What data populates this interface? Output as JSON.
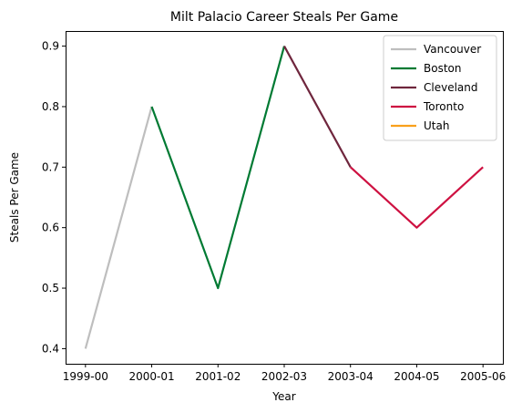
{
  "chart_data": {
    "type": "line",
    "title": "Milt Palacio Career Steals Per Game",
    "xlabel": "Year",
    "ylabel": "Steals Per Game",
    "categories": [
      "1999-00",
      "2000-01",
      "2001-02",
      "2002-03",
      "2003-04",
      "2004-05",
      "2005-06"
    ],
    "ylim": [
      0.375,
      0.925
    ],
    "yticks": [
      0.4,
      0.5,
      0.6,
      0.7,
      0.8,
      0.9
    ],
    "ytick_labels": [
      "0.4",
      "0.5",
      "0.6",
      "0.7",
      "0.8",
      "0.9"
    ],
    "grid": false,
    "legend_position": "top-right",
    "series": [
      {
        "name": "Vancouver",
        "color": "#BEBEBE",
        "points": [
          {
            "x": "1999-00",
            "y": 0.4
          },
          {
            "x": "2000-01",
            "y": 0.8
          }
        ]
      },
      {
        "name": "Boston",
        "color": "#007A33",
        "points": [
          {
            "x": "2000-01",
            "y": 0.8
          },
          {
            "x": "2001-02",
            "y": 0.5
          },
          {
            "x": "2002-03",
            "y": 0.9
          }
        ]
      },
      {
        "name": "Cleveland",
        "color": "#6F263D",
        "points": [
          {
            "x": "2002-03",
            "y": 0.9
          },
          {
            "x": "2003-04",
            "y": 0.7
          }
        ]
      },
      {
        "name": "Toronto",
        "color": "#CE1141",
        "points": [
          {
            "x": "2003-04",
            "y": 0.7
          },
          {
            "x": "2004-05",
            "y": 0.6
          },
          {
            "x": "2005-06",
            "y": 0.7
          }
        ]
      },
      {
        "name": "Utah",
        "color": "#F9A01B",
        "points": []
      }
    ]
  }
}
